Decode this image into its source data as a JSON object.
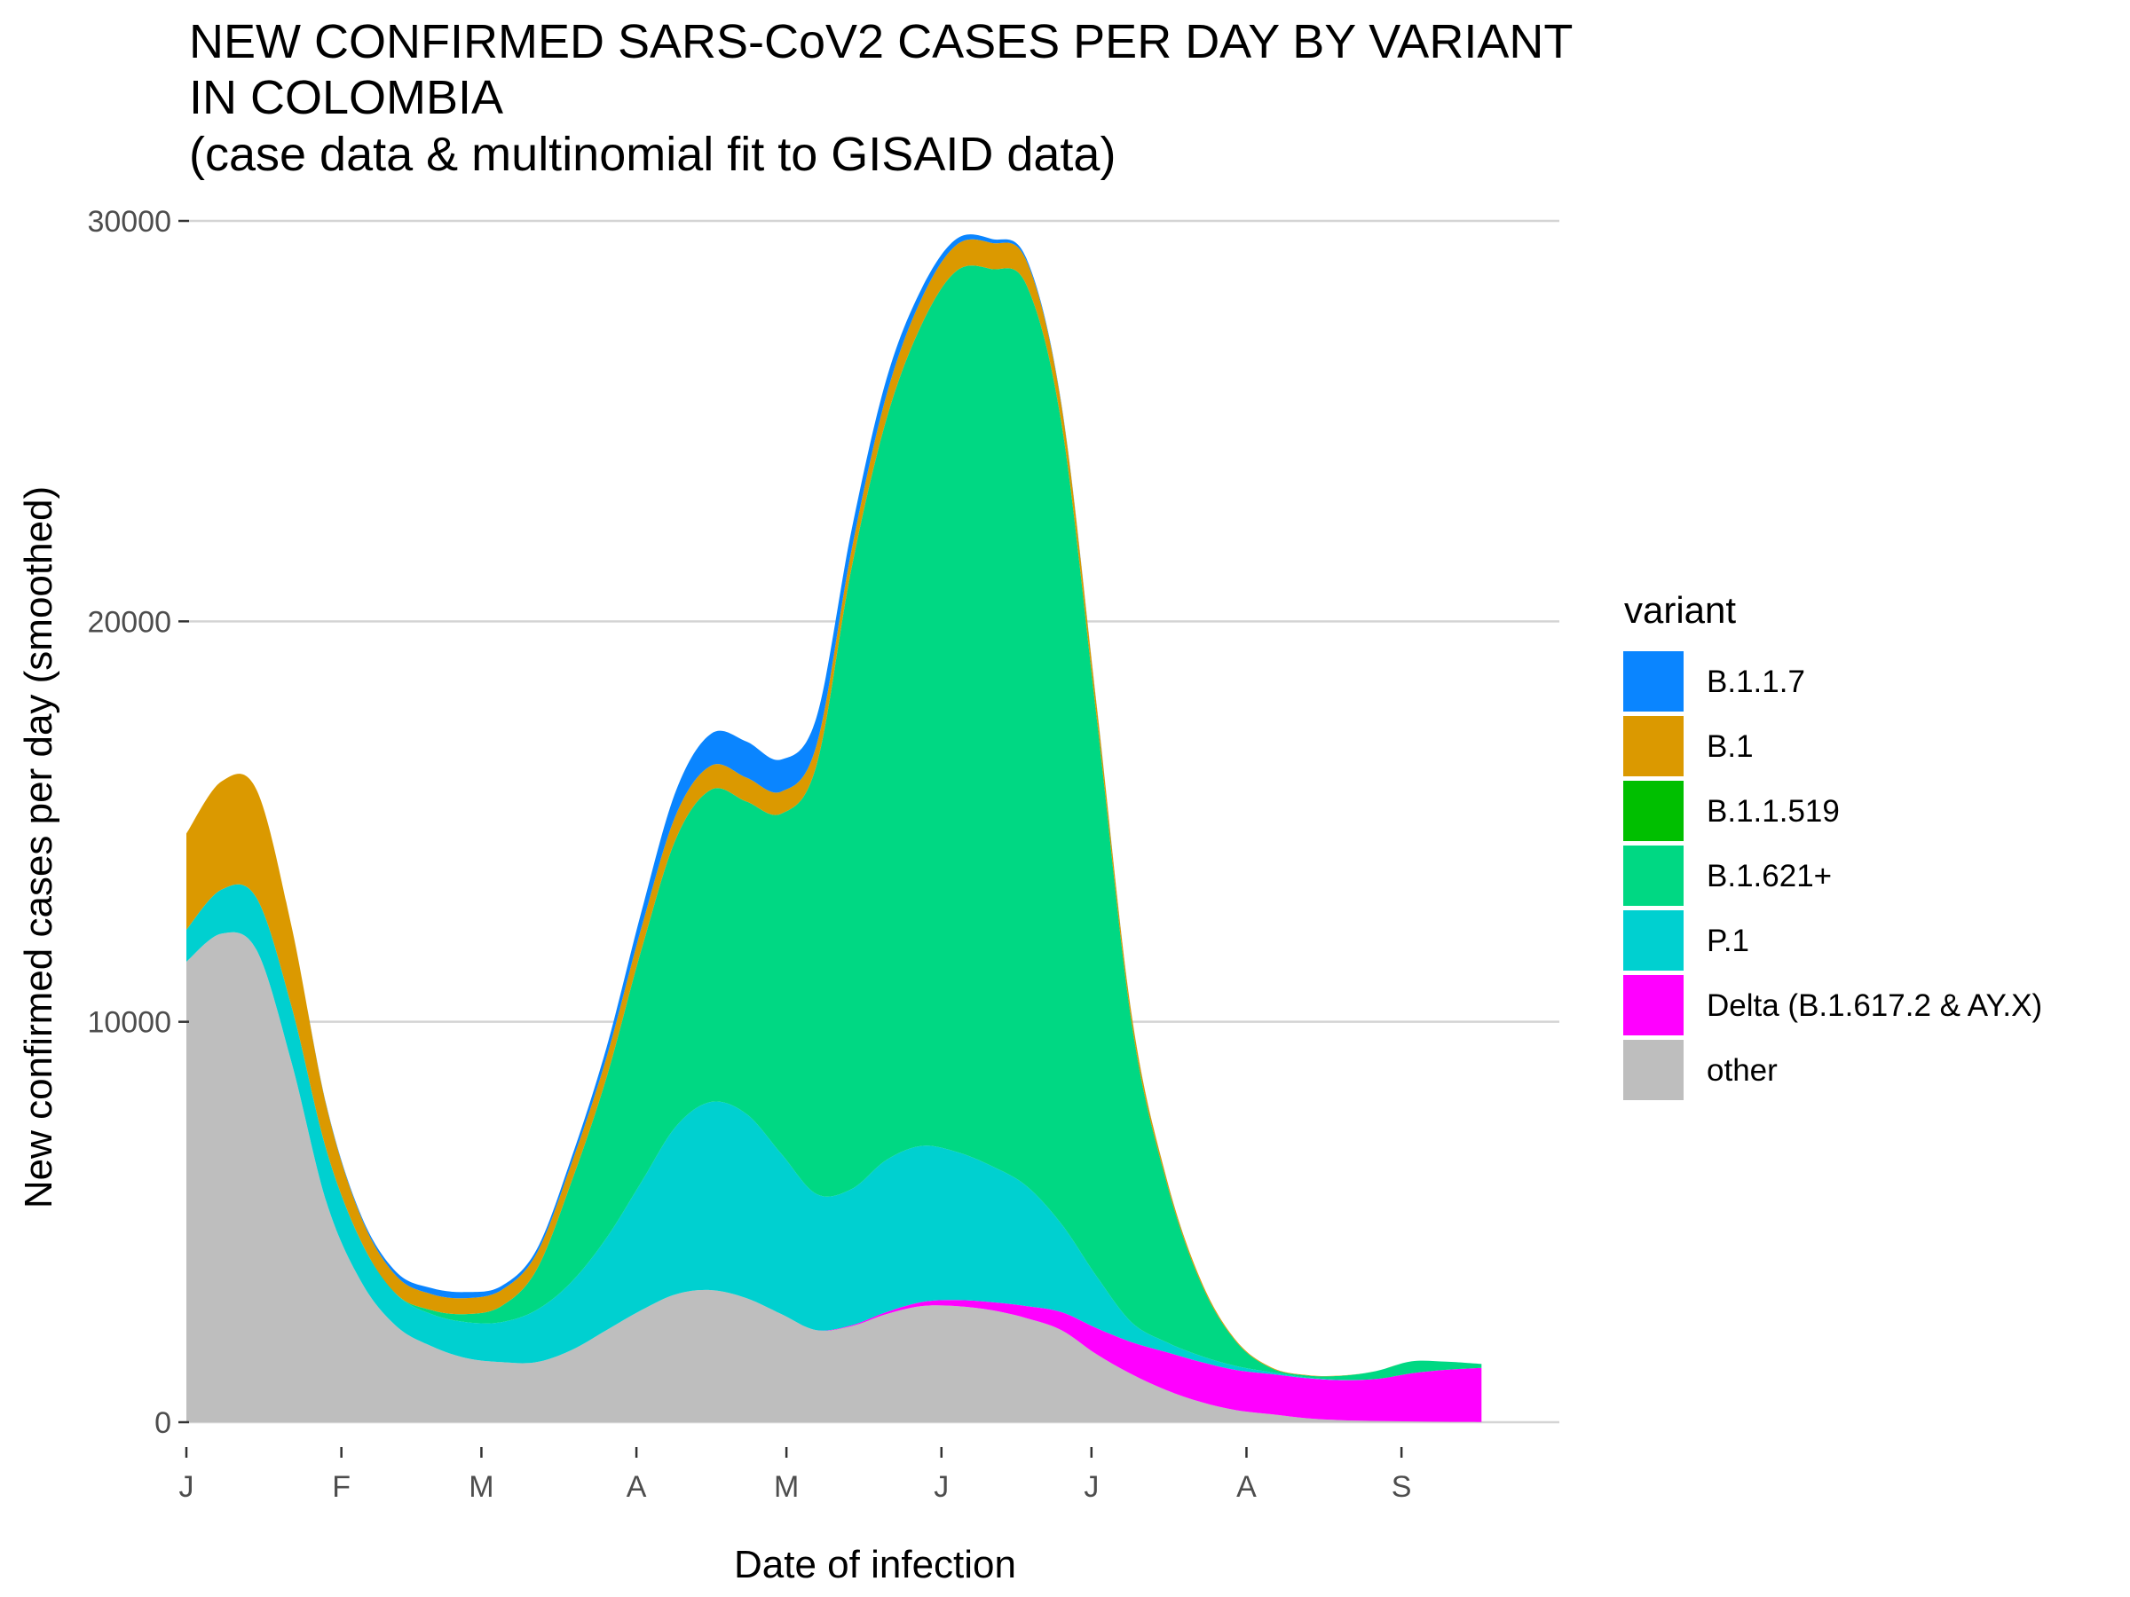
{
  "chart_data": {
    "type": "area",
    "stacked": true,
    "title_lines": [
      "NEW CONFIRMED SARS-CoV2 CASES PER DAY BY VARIANT",
      "IN COLOMBIA",
      "(case data & multinomial fit to GISAID data)"
    ],
    "xlabel": "Date of infection",
    "ylabel": "New confirmed cases per day (smoothed)",
    "x_months": [
      "J",
      "F",
      "M",
      "A",
      "M",
      "J",
      "J",
      "A",
      "S"
    ],
    "x": [
      0,
      7,
      14,
      21,
      28,
      35,
      42,
      49,
      56,
      63,
      70,
      77,
      84,
      91,
      98,
      105,
      112,
      119,
      126,
      133,
      140,
      147,
      154,
      161,
      168,
      175,
      182,
      189,
      196,
      203,
      210,
      217,
      224,
      231,
      238,
      245,
      252,
      259
    ],
    "x_ticks": [
      0,
      31,
      59,
      90,
      120,
      151,
      181,
      212,
      243
    ],
    "xlim": [
      0,
      268
    ],
    "ylim": [
      0,
      30000
    ],
    "y_ticks": [
      0,
      10000,
      20000,
      30000
    ],
    "y_tick_labels": [
      "0",
      "10000",
      "20000",
      "30000"
    ],
    "grid": "horizontal",
    "legend_title": "variant",
    "legend_position": "right",
    "series": [
      {
        "name": "B.1.1.7",
        "color": "#0a85ff",
        "values": [
          0,
          0,
          0,
          0,
          20,
          50,
          100,
          150,
          150,
          100,
          100,
          150,
          250,
          400,
          600,
          800,
          900,
          800,
          700,
          500,
          400,
          250,
          150,
          100,
          60,
          30,
          20,
          10,
          5,
          0,
          0,
          0,
          0,
          0,
          0,
          0,
          0,
          0
        ]
      },
      {
        "name": "B.1",
        "color": "#db9900",
        "values": [
          2400,
          2700,
          2700,
          2000,
          1100,
          600,
          450,
          400,
          400,
          400,
          400,
          450,
          500,
          550,
          600,
          600,
          600,
          550,
          500,
          450,
          600,
          650,
          650,
          650,
          600,
          450,
          300,
          200,
          100,
          60,
          30,
          20,
          10,
          5,
          0,
          0,
          0,
          0
        ]
      },
      {
        "name": "B.1.1.519",
        "color": "#00bf00",
        "values": [
          0,
          0,
          0,
          0,
          0,
          0,
          0,
          0,
          0,
          0,
          0,
          0,
          0,
          0,
          0,
          0,
          0,
          0,
          0,
          0,
          0,
          0,
          0,
          0,
          0,
          0,
          0,
          0,
          0,
          0,
          0,
          0,
          0,
          0,
          0,
          0,
          0,
          0
        ]
      },
      {
        "name": "B.1.621+",
        "color": "#00d883",
        "values": [
          0,
          0,
          0,
          0,
          0,
          0,
          0,
          100,
          200,
          400,
          1000,
          2500,
          4000,
          5800,
          7200,
          7800,
          7800,
          8500,
          10700,
          15500,
          18500,
          20500,
          22000,
          22400,
          22500,
          20000,
          14000,
          7500,
          4000,
          1800,
          600,
          100,
          50,
          100,
          200,
          300,
          200,
          100
        ]
      },
      {
        "name": "P.1",
        "color": "#00d0d0",
        "values": [
          800,
          1100,
          1300,
          1400,
          1300,
          1000,
          800,
          800,
          900,
          1000,
          1300,
          1700,
          2300,
          3200,
          4200,
          4700,
          4600,
          4000,
          3400,
          3400,
          3800,
          3900,
          3700,
          3400,
          3000,
          2200,
          1300,
          500,
          250,
          150,
          100,
          50,
          20,
          10,
          0,
          0,
          0,
          0
        ]
      },
      {
        "name": "Delta (B.1.617.2 & AY.X)",
        "color": "#ff00ff",
        "values": [
          0,
          0,
          0,
          0,
          0,
          0,
          0,
          0,
          0,
          0,
          0,
          0,
          0,
          0,
          0,
          0,
          0,
          0,
          0,
          20,
          50,
          100,
          150,
          200,
          300,
          450,
          650,
          800,
          950,
          1000,
          1000,
          1000,
          1000,
          1000,
          1050,
          1200,
          1300,
          1350
        ]
      },
      {
        "name": "other",
        "color": "#bebebe",
        "values": [
          11500,
          12200,
          11800,
          9000,
          5500,
          3500,
          2400,
          1900,
          1600,
          1500,
          1500,
          1800,
          2300,
          2800,
          3200,
          3300,
          3100,
          2700,
          2300,
          2400,
          2700,
          2900,
          2900,
          2800,
          2600,
          2300,
          1700,
          1200,
          800,
          500,
          300,
          200,
          100,
          50,
          30,
          20,
          10,
          5
        ]
      }
    ]
  }
}
